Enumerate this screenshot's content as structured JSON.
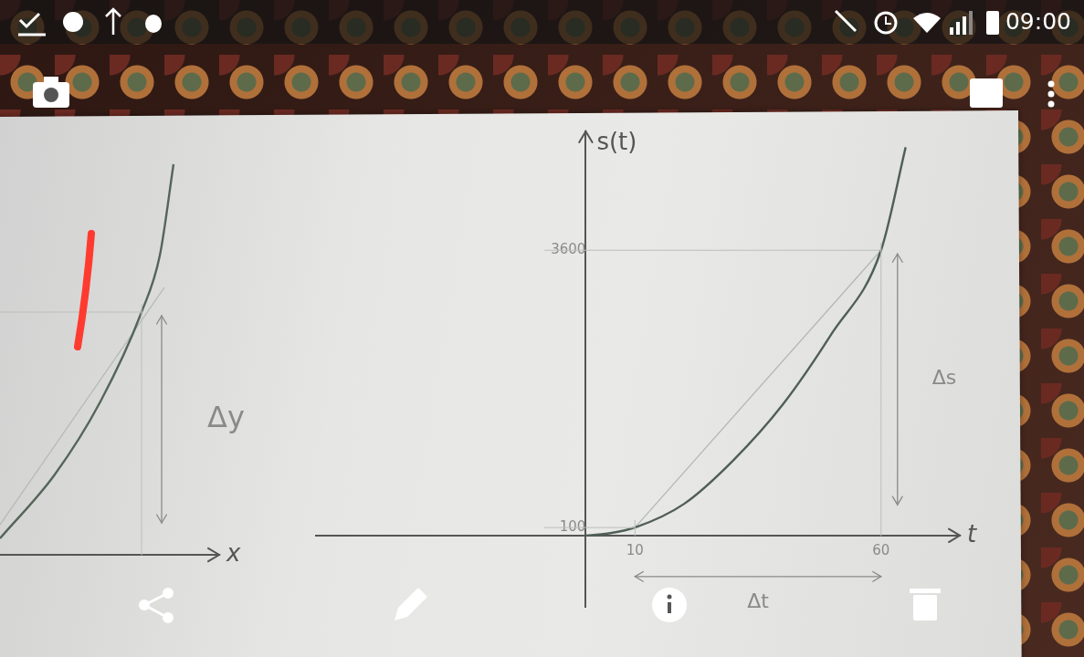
{
  "status_bar": {
    "time": "09:00"
  },
  "chart_data": [
    {
      "type": "line",
      "x_label": "x",
      "annotations": [
        "Δy"
      ],
      "series": [
        {
          "x": [
            6,
            12,
            17,
            21.5,
            23.5,
            25
          ],
          "values": [
            1.8,
            8.8,
            16.8,
            26.6,
            32.8,
            42.8
          ],
          "color": "#55655a"
        },
        {
          "x": [
            6,
            24
          ],
          "values": [
            3.3,
            29.3
          ],
          "color": "#b3b8b3"
        }
      ],
      "xlim": [
        0,
        30
      ],
      "ylim": [
        -1.2,
        46.8
      ],
      "xticks": [
        21.5
      ],
      "yticks": [
        26.6
      ],
      "grid": false,
      "tick_labels": false
    },
    {
      "type": "line",
      "x_label": "t",
      "y_label": "s(t)",
      "annotations": [
        "Δs",
        "Δt"
      ],
      "series": [
        {
          "x": [
            0,
            5,
            10,
            20,
            30,
            40,
            50,
            60,
            65
          ],
          "values": [
            0,
            30,
            100,
            400,
            950,
            1650,
            2550,
            3600,
            4900
          ],
          "color": "#4f5f55"
        },
        {
          "x": [
            10,
            60
          ],
          "values": [
            100,
            3600
          ],
          "color": "#b3b8b3"
        }
      ],
      "xlim": [
        -55,
        76
      ],
      "ylim": [
        -900,
        5100
      ],
      "xticks": [
        10,
        60
      ],
      "yticks": [
        100,
        3600
      ],
      "grid": false
    }
  ]
}
